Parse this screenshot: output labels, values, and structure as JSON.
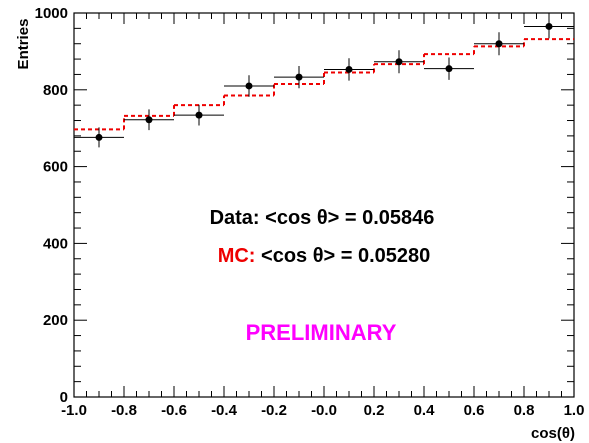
{
  "chart_data": {
    "type": "scatter",
    "title": "",
    "xlabel": "cos(θ)",
    "ylabel": "Entries",
    "xlim": [
      -1.0,
      1.0
    ],
    "ylim": [
      0,
      1000
    ],
    "grid": false,
    "x_tick_labels": [
      "-1.0",
      "-0.8",
      "-0.6",
      "-0.4",
      "-0.2",
      "-0.0",
      "0.2",
      "0.4",
      "0.6",
      "0.8",
      "1.0"
    ],
    "y_tick_labels": [
      "0",
      "200",
      "400",
      "600",
      "800",
      "1000"
    ],
    "x_ticks": [
      -1.0,
      -0.8,
      -0.6,
      -0.4,
      -0.2,
      0.0,
      0.2,
      0.4,
      0.6,
      0.8,
      1.0
    ],
    "y_ticks": [
      0,
      200,
      400,
      600,
      800,
      1000
    ],
    "bin_edges": [
      -1.0,
      -0.8,
      -0.6,
      -0.4,
      -0.2,
      0.0,
      0.2,
      0.4,
      0.6,
      0.8,
      1.0
    ],
    "series": [
      {
        "kind": "points-with-errors",
        "color": "#000000",
        "x": [
          -0.9,
          -0.7,
          -0.5,
          -0.3,
          -0.1,
          0.1,
          0.3,
          0.5,
          0.7,
          0.9
        ],
        "values": [
          676,
          722,
          734,
          810,
          833,
          853,
          873,
          855,
          920,
          965
        ],
        "errors": [
          26,
          27,
          27,
          28,
          29,
          29,
          30,
          29,
          30,
          31
        ]
      },
      {
        "kind": "step-histogram",
        "color": "#ee0000",
        "values": [
          697,
          732,
          760,
          785,
          815,
          845,
          867,
          893,
          913,
          932
        ]
      }
    ],
    "annotations": [
      {
        "id": "data",
        "parts": [
          {
            "text": "Data: ",
            "color": "#000000"
          },
          {
            "text": "<cos θ> = 0.05846",
            "color": "#000000"
          }
        ]
      },
      {
        "id": "mc",
        "parts": [
          {
            "text": "MC: ",
            "color": "#ee0000"
          },
          {
            "text": "<cos θ> = 0.05280",
            "color": "#000000"
          }
        ]
      },
      {
        "id": "prelim",
        "parts": [
          {
            "text": "PRELIMINARY",
            "color": "#ff00ff"
          }
        ]
      }
    ]
  }
}
